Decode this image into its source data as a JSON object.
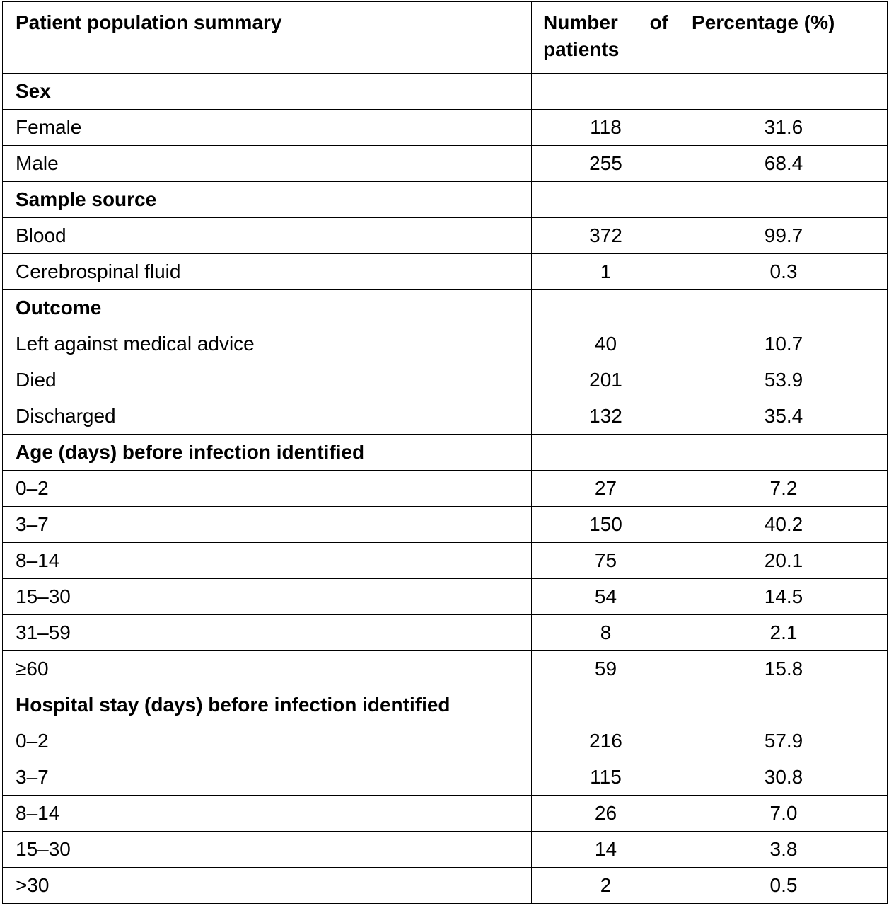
{
  "table": {
    "headers": {
      "summary": "Patient population summary",
      "number": "Number of patients",
      "percentage": "Percentage (%)"
    },
    "sections": {
      "sex": {
        "title": "Sex",
        "rows": [
          {
            "label": "Female",
            "number": "118",
            "percentage": "31.6"
          },
          {
            "label": "Male",
            "number": "255",
            "percentage": "68.4"
          }
        ]
      },
      "sample_source": {
        "title": "Sample source",
        "rows": [
          {
            "label": "Blood",
            "number": "372",
            "percentage": "99.7"
          },
          {
            "label": "Cerebrospinal fluid",
            "number": "1",
            "percentage": "0.3"
          }
        ]
      },
      "outcome": {
        "title": "Outcome",
        "rows": [
          {
            "label": "Left against medical advice",
            "number": "40",
            "percentage": "10.7"
          },
          {
            "label": "Died",
            "number": "201",
            "percentage": "53.9"
          },
          {
            "label": "Discharged",
            "number": "132",
            "percentage": "35.4"
          }
        ]
      },
      "age": {
        "title": "Age (days) before infection identified",
        "rows": [
          {
            "label": "0–2",
            "number": "27",
            "percentage": "7.2"
          },
          {
            "label": "3–7",
            "number": "150",
            "percentage": "40.2"
          },
          {
            "label": "8–14",
            "number": "75",
            "percentage": "20.1"
          },
          {
            "label": "15–30",
            "number": "54",
            "percentage": "14.5"
          },
          {
            "label": "31–59",
            "number": "8",
            "percentage": "2.1"
          },
          {
            "label": "≥60",
            "number": "59",
            "percentage": "15.8"
          }
        ]
      },
      "hospital_stay": {
        "title": "Hospital stay (days) before infection identified",
        "rows": [
          {
            "label": "0–2",
            "number": "216",
            "percentage": "57.9"
          },
          {
            "label": "3–7",
            "number": "115",
            "percentage": "30.8"
          },
          {
            "label": "8–14",
            "number": "26",
            "percentage": "7.0"
          },
          {
            "label": "15–30",
            "number": "14",
            "percentage": "3.8"
          },
          {
            "label": ">30",
            "number": "2",
            "percentage": "0.5"
          }
        ]
      }
    }
  }
}
